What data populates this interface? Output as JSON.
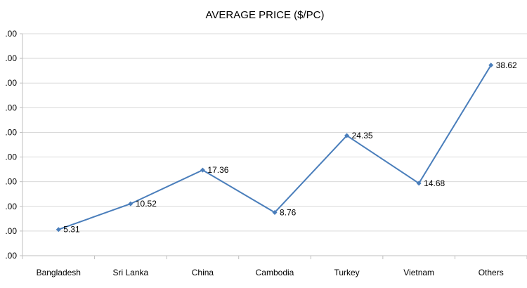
{
  "chart_data": {
    "type": "line",
    "title": "AVERAGE PRICE ($/PC)",
    "xlabel": "",
    "ylabel": "",
    "categories": [
      "Bangladesh",
      "Sri Lanka",
      "China",
      "Cambodia",
      "Turkey",
      "Vietnam",
      "Others"
    ],
    "series": [
      {
        "values": [
          5.31,
          10.52,
          17.36,
          8.76,
          24.35,
          14.68,
          38.62
        ]
      }
    ],
    "data_labels": [
      "5.31",
      "10.52",
      "17.36",
      "8.76",
      "24.35",
      "14.68",
      "38.62"
    ],
    "y_ticks": [
      ".00",
      ".00",
      ".00",
      ".00",
      ".00",
      ".00",
      ".00",
      ".00",
      ".00",
      ".00"
    ],
    "ylim": [
      0,
      45
    ],
    "ytick_step": 5,
    "grid": true,
    "legend": "none",
    "colors": {
      "series": "#4a7ebb",
      "grid": "#d9d9d9"
    }
  }
}
